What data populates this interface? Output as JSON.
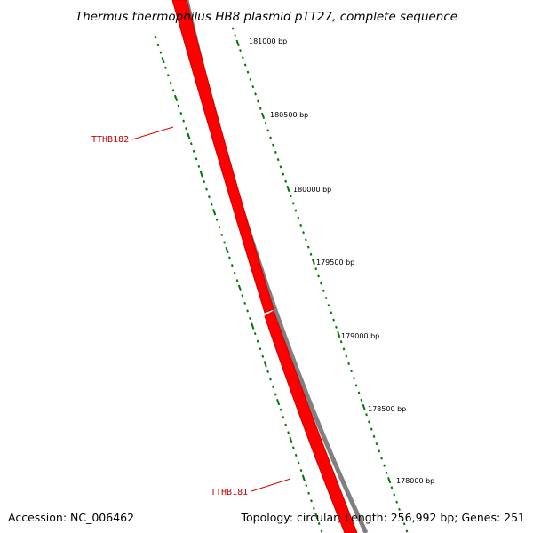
{
  "title": "Thermus thermophilus HB8 plasmid pTT27, complete sequence",
  "footer": {
    "accession": "Accession: NC_006462",
    "summary": "Topology: circular; Length: 256,992 bp; Genes: 251"
  },
  "tick_labels": [
    "181000 bp",
    "180500 bp",
    "180000 bp",
    "179500 bp",
    "179000 bp",
    "178500 bp",
    "178000 bp"
  ],
  "genes": [
    {
      "name": "TTHB182"
    },
    {
      "name": "TTHB181"
    }
  ],
  "colors": {
    "gene": "#ff0000",
    "gene_shade": "#cc0000",
    "backbone": "#808080",
    "ticks": "#007700",
    "label": "#cc0000",
    "leader": "#e00000"
  }
}
